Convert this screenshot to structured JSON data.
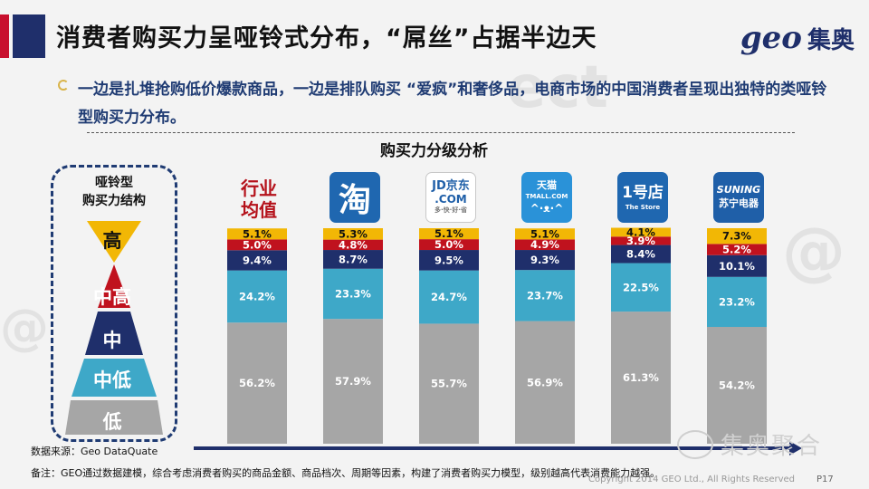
{
  "header": {
    "title": "消费者购买力呈哑铃式分布，“屌丝”占据半边天",
    "logo_latin": "geo",
    "logo_cn": "集奥"
  },
  "bullet": {
    "text": "一边是扎堆抢购低价爆款商品，一边是排队购买 “爱疯”和奢侈品，电商市场的中国消费者呈现出独特的类哑铃型购买力分布。"
  },
  "legend_box": {
    "title_line1": "哑铃型",
    "title_line2": "购买力结构",
    "levels": [
      "高",
      "中高",
      "中",
      "中低",
      "低"
    ]
  },
  "brands": {
    "avg_line1": "行业",
    "avg_line2": "均值",
    "taobao": "淘",
    "jd_main": "JD京东",
    "jd_sub": ".COM",
    "jd_slogan": "多·快·好·省",
    "tmall_top": "天猫",
    "tmall_sub": "TMALL.COM",
    "yhd_main": "1号店",
    "yhd_sub": "The Store",
    "suning_en": "SUNING",
    "suning_cn": "苏宁电器"
  },
  "chart_data": {
    "type": "bar",
    "stacked": true,
    "title": "购买力分级分析",
    "categories": [
      "行业均值",
      "淘宝",
      "京东",
      "天猫",
      "1号店",
      "苏宁电器"
    ],
    "series": [
      {
        "name": "低",
        "color": "#a6a6a6",
        "label_color": "#ffffff",
        "values": [
          56.2,
          57.9,
          55.7,
          56.9,
          61.3,
          54.2
        ]
      },
      {
        "name": "中低",
        "color": "#3ea8c8",
        "label_color": "#ffffff",
        "values": [
          24.2,
          23.3,
          24.7,
          23.7,
          22.5,
          23.2
        ]
      },
      {
        "name": "中",
        "color": "#1f2f6b",
        "label_color": "#ffffff",
        "values": [
          9.4,
          8.7,
          9.5,
          9.3,
          8.4,
          10.1
        ]
      },
      {
        "name": "中高",
        "color": "#c0121e",
        "label_color": "#ffffff",
        "values": [
          5.0,
          4.8,
          5.0,
          4.9,
          3.9,
          5.2
        ]
      },
      {
        "name": "高",
        "color": "#f2b705",
        "label_color": "#111111",
        "values": [
          5.1,
          5.3,
          5.1,
          5.1,
          4.1,
          7.3
        ]
      }
    ],
    "ylim": [
      0,
      100
    ],
    "value_suffix": "%"
  },
  "footer": {
    "source": "数据来源：Geo DataQuate",
    "note": "备注：GEO通过数据建模，综合考虑消费者购买的商品金额、商品档次、周期等因素，构建了消费者购买力模型，级别越高代表消费能力越强。",
    "copyright": "Copyright 2014 GEO Ltd., All Rights Reserved",
    "page": "P17",
    "wechat": "集奥聚合"
  }
}
